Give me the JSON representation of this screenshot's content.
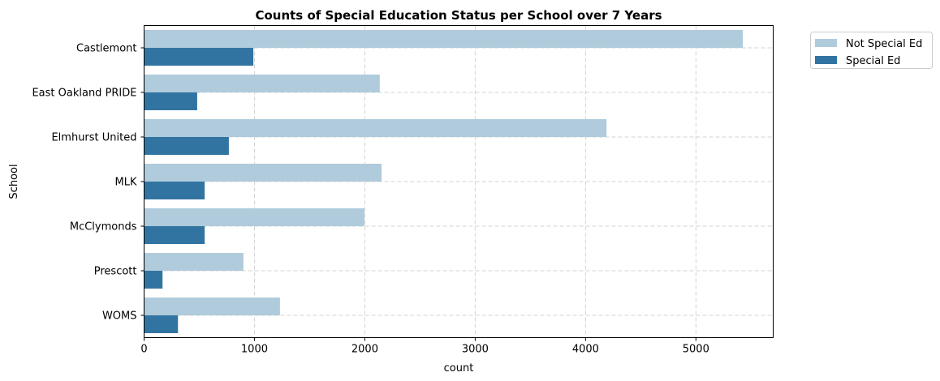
{
  "chart_data": {
    "type": "bar",
    "orientation": "horizontal",
    "title": "Counts of Special Education Status per School over 7 Years",
    "title_color": "#00008b",
    "xlabel": "count",
    "ylabel": "School",
    "xlim": [
      0,
      5700
    ],
    "xticks": [
      0,
      1000,
      2000,
      3000,
      4000,
      5000
    ],
    "grid": true,
    "legend_placement": "outside-top-right",
    "categories": [
      "Castlemont",
      "East Oakland PRIDE",
      "Elmhurst United",
      "MLK",
      "McClymonds",
      "Prescott",
      "WOMS"
    ],
    "series": [
      {
        "name": "Not Special Ed",
        "color": "#afcbdc",
        "values": [
          5425,
          2135,
          4190,
          2152,
          1996,
          900,
          1231
        ]
      },
      {
        "name": "Special Ed",
        "color": "#3274a1",
        "values": [
          990,
          481,
          768,
          549,
          549,
          167,
          307
        ]
      }
    ]
  }
}
